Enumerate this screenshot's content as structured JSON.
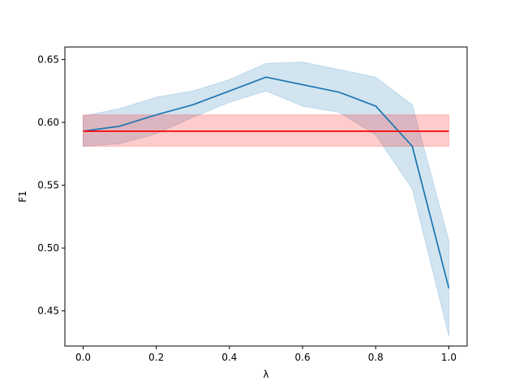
{
  "chart_data": {
    "type": "line",
    "title": "",
    "xlabel": "λ",
    "ylabel": "F1",
    "xlim": [
      -0.05,
      1.05
    ],
    "ylim": [
      0.422,
      0.66
    ],
    "grid": false,
    "x_ticks": [
      0.0,
      0.2,
      0.4,
      0.6,
      0.8,
      1.0
    ],
    "x_tick_labels": [
      "0.0",
      "0.2",
      "0.4",
      "0.6",
      "0.8",
      "1.0"
    ],
    "y_ticks": [
      0.45,
      0.5,
      0.55,
      0.6,
      0.65
    ],
    "y_tick_labels": [
      "0.45",
      "0.50",
      "0.55",
      "0.60",
      "0.65"
    ],
    "series": [
      {
        "color": "#1f77b4",
        "band_color": "#1f77b4",
        "x": [
          0.0,
          0.1,
          0.2,
          0.3,
          0.4,
          0.5,
          0.6,
          0.7,
          0.8,
          0.9,
          1.0
        ],
        "y": [
          0.593,
          0.597,
          0.606,
          0.614,
          0.625,
          0.636,
          0.63,
          0.624,
          0.613,
          0.581,
          0.468
        ],
        "lower": [
          0.581,
          0.583,
          0.591,
          0.604,
          0.616,
          0.625,
          0.613,
          0.608,
          0.59,
          0.547,
          0.43
        ],
        "upper": [
          0.605,
          0.611,
          0.62,
          0.625,
          0.634,
          0.647,
          0.648,
          0.642,
          0.636,
          0.614,
          0.506
        ]
      },
      {
        "color": "#ff0000",
        "band_color": "#ff0000",
        "x": [
          0.0,
          1.0
        ],
        "y": [
          0.593,
          0.593
        ],
        "lower": [
          0.581,
          0.581
        ],
        "upper": [
          0.606,
          0.606
        ]
      }
    ]
  }
}
